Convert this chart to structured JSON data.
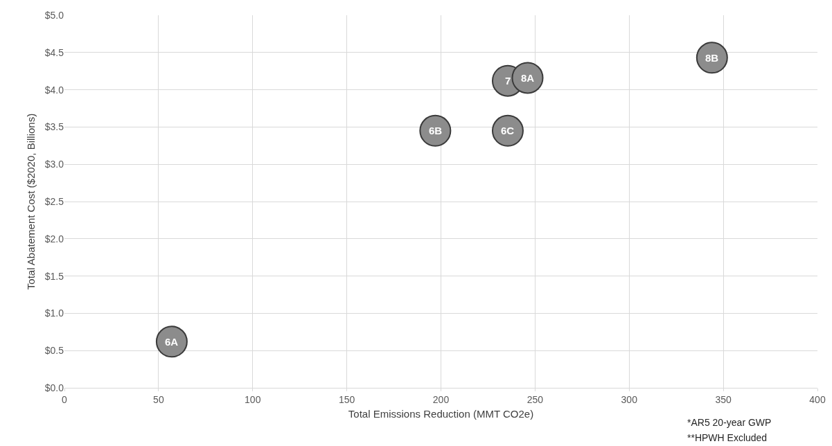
{
  "chart_data": {
    "type": "scatter",
    "xlabel": "Total Emissions Reduction (MMT CO2e)",
    "ylabel": "Total Abatement Cost ($2020, Billions)",
    "x": [
      57,
      197,
      235.5,
      235.5,
      246,
      344
    ],
    "series": [
      {
        "color": "#8c8c8c",
        "values": [
          0.62,
          3.45,
          3.45,
          4.12,
          4.16,
          4.43
        ]
      }
    ],
    "marker": "circle",
    "grid": true,
    "legend": false,
    "xlim": [
      0,
      400
    ],
    "xticks": [
      0,
      50,
      100,
      150,
      200,
      250,
      300,
      350,
      400
    ],
    "ylim": [
      0,
      5
    ],
    "yticks": [
      {
        "value": 0,
        "label": "$0.0"
      },
      {
        "value": 0.5,
        "label": "$0.5"
      },
      {
        "value": 1,
        "label": "$1.0"
      },
      {
        "value": 1.5,
        "label": "$1.5"
      },
      {
        "value": 2,
        "label": "$2.0"
      },
      {
        "value": 2.5,
        "label": "$2.5"
      },
      {
        "value": 3,
        "label": "$3.0"
      },
      {
        "value": 3.5,
        "label": "$3.5"
      },
      {
        "value": 4,
        "label": "$4.0"
      },
      {
        "value": 4.5,
        "label": "$4.5"
      },
      {
        "value": 5,
        "label": "$5.0"
      }
    ],
    "annotations": [
      {
        "text": "6A",
        "x": 57,
        "y": 0.62
      },
      {
        "text": "6B",
        "x": 197,
        "y": 3.45
      },
      {
        "text": "6C",
        "x": 235.5,
        "y": 3.45
      },
      {
        "text": "7",
        "x": 235.5,
        "y": 4.12
      },
      {
        "text": "8A",
        "x": 246,
        "y": 4.16
      },
      {
        "text": "8B",
        "x": 344,
        "y": 4.43
      },
      "*AR5 20-year GWP",
      "**HPWH Excluded"
    ]
  }
}
